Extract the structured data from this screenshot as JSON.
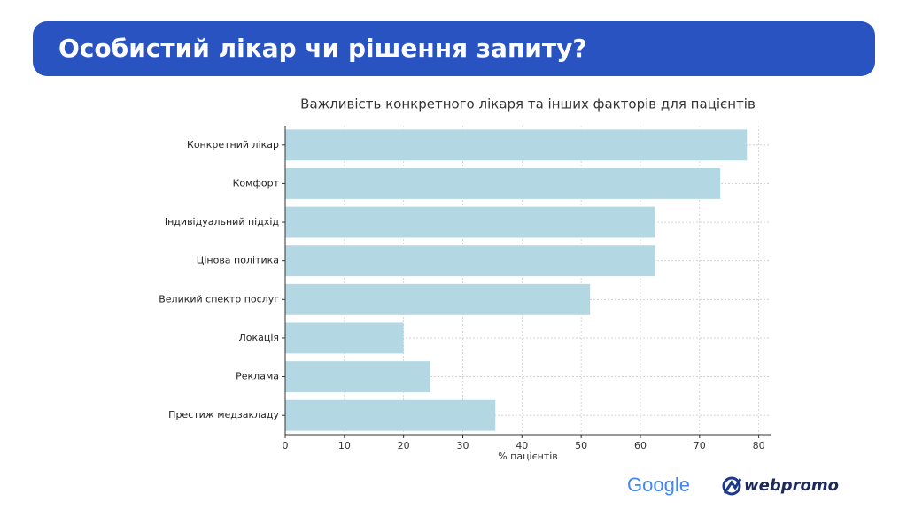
{
  "slide_title": "Особистий лікар чи рішення запиту?",
  "chart_data": {
    "type": "barh",
    "title": "Важливість конкретного лікаря та інших факторів для пацієнтів",
    "x_label": "% пацієнтів",
    "categories": [
      "Конкретний лікар",
      "Комфорт",
      "Індивідуальний підхід",
      "Цінова політика",
      "Великий спектр послуг",
      "Локація",
      "Реклама",
      "Престиж медзакладу"
    ],
    "values": [
      78,
      73.5,
      62.5,
      62.5,
      51.5,
      20,
      24.5,
      35.5
    ],
    "color": "#b4d8e3",
    "xlim": [
      0,
      82
    ],
    "xticks": [
      0,
      10,
      20,
      30,
      40,
      50,
      60,
      70,
      80
    ],
    "grid": true
  },
  "logos": [
    "Google",
    "webpromo"
  ]
}
